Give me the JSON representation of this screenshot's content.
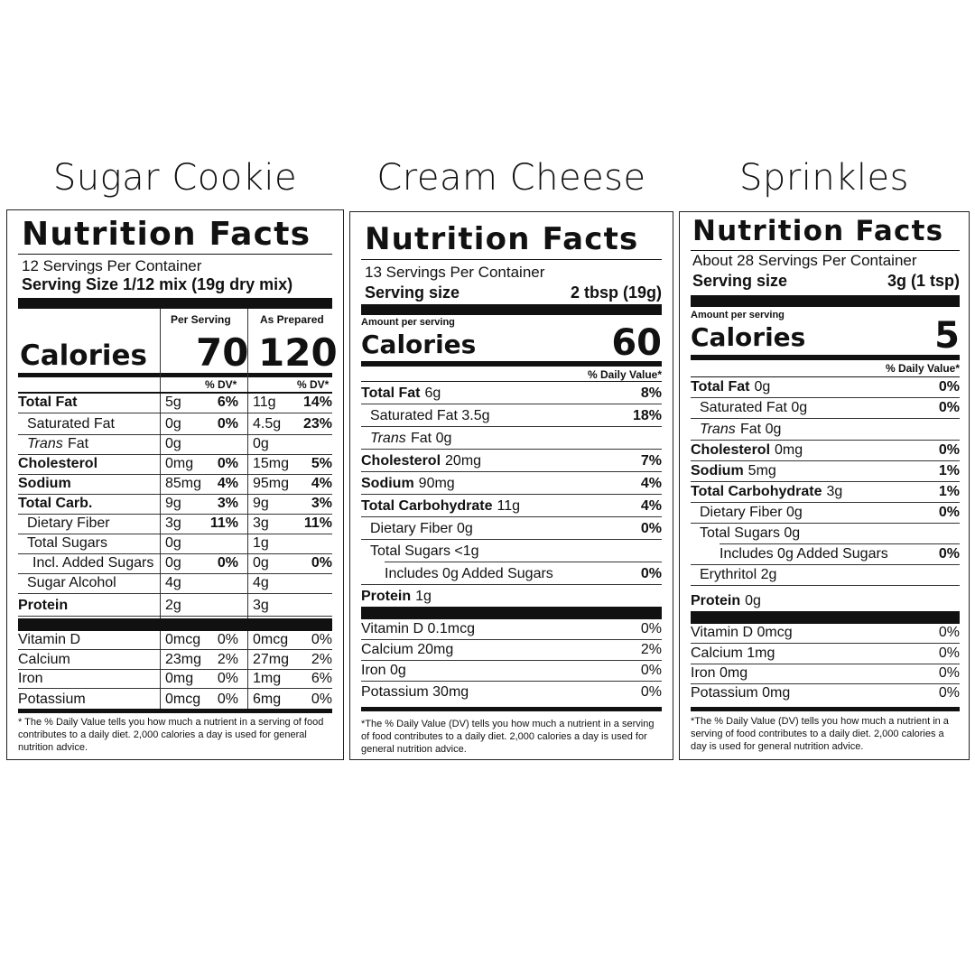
{
  "titles": {
    "cookie": "Sugar Cookie",
    "cream": "Cream Cheese",
    "sprinkles": "Sprinkles"
  },
  "cookie": {
    "heading": "Nutrition Facts",
    "servings": "12 Servings Per Container",
    "serving_size": "Serving Size 1/12 mix (19g dry mix)",
    "col1": "Per Serving",
    "col2": "As Prepared",
    "calories_label": "Calories",
    "calories1": "70",
    "calories2": "120",
    "dv1": "% DV*",
    "dv2": "% DV*",
    "rows": [
      {
        "label": "Total Fat",
        "v1": "5g",
        "p1": "6%",
        "v2": "11g",
        "p2": "14%"
      },
      {
        "label": "Saturated Fat",
        "v1": "0g",
        "p1": "0%",
        "v2": "4.5g",
        "p2": "23%"
      },
      {
        "label": "Fat",
        "v1": "0g",
        "p1": "",
        "v2": "0g",
        "p2": ""
      },
      {
        "label": "Cholesterol",
        "v1": "0mg",
        "p1": "0%",
        "v2": "15mg",
        "p2": "5%"
      },
      {
        "label": "Sodium",
        "v1": "85mg",
        "p1": "4%",
        "v2": "95mg",
        "p2": "4%"
      },
      {
        "label": "Total Carb.",
        "v1": "9g",
        "p1": "3%",
        "v2": "9g",
        "p2": "3%"
      },
      {
        "label": "Dietary Fiber",
        "v1": "3g",
        "p1": "11%",
        "v2": "3g",
        "p2": "11%"
      },
      {
        "label": "Total Sugars",
        "v1": "0g",
        "p1": "",
        "v2": "1g",
        "p2": ""
      },
      {
        "label": "Incl. Added Sugars",
        "v1": "0g",
        "p1": "0%",
        "v2": "0g",
        "p2": "0%"
      },
      {
        "label": "Sugar Alcohol",
        "v1": "4g",
        "p1": "",
        "v2": "4g",
        "p2": ""
      },
      {
        "label": "Protein",
        "v1": "2g",
        "p1": "",
        "v2": "3g",
        "p2": ""
      }
    ],
    "trans_word": "Trans",
    "vitamins": [
      {
        "label": "Vitamin D",
        "v1": "0mcg",
        "p1": "0%",
        "v2": "0mcg",
        "p2": "0%"
      },
      {
        "label": "Calcium",
        "v1": "23mg",
        "p1": "2%",
        "v2": "27mg",
        "p2": "2%"
      },
      {
        "label": "Iron",
        "v1": "0mg",
        "p1": "0%",
        "v2": "1mg",
        "p2": "6%"
      },
      {
        "label": "Potassium",
        "v1": "0mcg",
        "p1": "0%",
        "v2": "6mg",
        "p2": "0%"
      }
    ],
    "footnote": "* The % Daily Value tells you how much a nutrient in a serving of food contributes to a daily diet. 2,000 calories a day is used for general nutrition advice."
  },
  "cream": {
    "heading": "Nutrition Facts",
    "servings": "13 Servings Per Container",
    "serving_label": "Serving size",
    "serving_value": "2 tbsp (19g)",
    "amount": "Amount per serving",
    "calories_label": "Calories",
    "calories": "60",
    "dv": "% Daily Value*",
    "rows": [
      {
        "label": "Total Fat",
        "amt": "6g",
        "p": "8%"
      },
      {
        "label": "Saturated Fat 3.5g",
        "amt": "",
        "p": "18%"
      },
      {
        "label": "Fat 0g",
        "amt": "",
        "p": ""
      },
      {
        "label": "Cholesterol",
        "amt": "20mg",
        "p": "7%"
      },
      {
        "label": "Sodium",
        "amt": "90mg",
        "p": "4%"
      },
      {
        "label": "Total Carbohydrate",
        "amt": "11g",
        "p": "4%"
      },
      {
        "label": "Dietary Fiber 0g",
        "amt": "",
        "p": "0%"
      },
      {
        "label": "Total Sugars <1g",
        "amt": "",
        "p": ""
      },
      {
        "label": "Includes 0g Added Sugars",
        "amt": "",
        "p": "0%"
      },
      {
        "label": "Protein",
        "amt": "1g",
        "p": ""
      }
    ],
    "trans_word": "Trans",
    "vitamins": [
      {
        "label": "Vitamin D 0.1mcg",
        "p": "0%"
      },
      {
        "label": "Calcium 20mg",
        "p": "2%"
      },
      {
        "label": "Iron 0g",
        "p": "0%"
      },
      {
        "label": "Potassium 30mg",
        "p": "0%"
      }
    ],
    "footnote": "*The % Daily Value (DV) tells you how much a nutrient in a serving of food contributes to a daily diet. 2,000 calories a day is used for general nutrition advice."
  },
  "sprinkles": {
    "heading": "Nutrition Facts",
    "servings": "About 28 Servings Per Container",
    "serving_label": "Serving size",
    "serving_value": "3g (1 tsp)",
    "amount": "Amount per serving",
    "calories_label": "Calories",
    "calories": "5",
    "dv": "% Daily Value*",
    "rows": [
      {
        "label": "Total Fat",
        "amt": "0g",
        "p": "0%"
      },
      {
        "label": "Saturated Fat 0g",
        "amt": "",
        "p": "0%"
      },
      {
        "label": "Fat 0g",
        "amt": "",
        "p": ""
      },
      {
        "label": "Cholesterol",
        "amt": "0mg",
        "p": "0%"
      },
      {
        "label": "Sodium",
        "amt": "5mg",
        "p": "1%"
      },
      {
        "label": "Total Carbohydrate",
        "amt": "3g",
        "p": "1%"
      },
      {
        "label": "Dietary Fiber 0g",
        "amt": "",
        "p": "0%"
      },
      {
        "label": "Total Sugars 0g",
        "amt": "",
        "p": ""
      },
      {
        "label": "Includes 0g Added Sugars",
        "amt": "",
        "p": "0%"
      },
      {
        "label": "Erythritol 2g",
        "amt": "",
        "p": ""
      },
      {
        "label": "Protein",
        "amt": "0g",
        "p": ""
      }
    ],
    "trans_word": "Trans",
    "vitamins": [
      {
        "label": "Vitamin D 0mcg",
        "p": "0%"
      },
      {
        "label": "Calcium 1mg",
        "p": "0%"
      },
      {
        "label": "Iron 0mg",
        "p": "0%"
      },
      {
        "label": "Potassium 0mg",
        "p": "0%"
      }
    ],
    "footnote": "*The % Daily Value (DV) tells you how much a nutrient in a serving of food contributes to a daily diet. 2,000 calories a day is used for general nutrition advice."
  }
}
